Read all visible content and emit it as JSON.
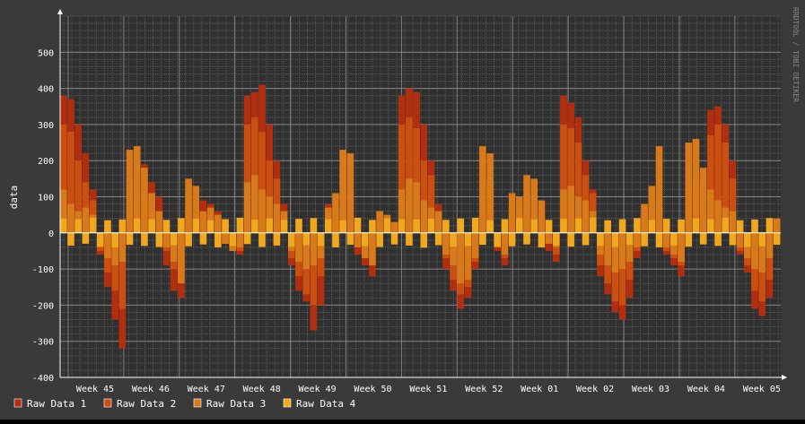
{
  "chart_data": {
    "type": "bar",
    "title": "",
    "ylabel": "data",
    "xlabel": "",
    "ylim": [
      -400,
      600
    ],
    "yticks": [
      -400,
      -300,
      -200,
      -100,
      0,
      100,
      200,
      300,
      400,
      500
    ],
    "x_tick_labels": [
      "Week 45",
      "Week 46",
      "Week 47",
      "Week 48",
      "Week 49",
      "Week 50",
      "Week 51",
      "Week 52",
      "Week 01",
      "Week 02",
      "Week 03",
      "Week 04",
      "Week 05"
    ],
    "grid": true,
    "legend_position": "bottom-left",
    "watermark": "RRDTOOL / TOBI OETIKER",
    "colors": {
      "background": "#3a3a3a",
      "canvas": "#303030",
      "major_grid": "#a0a0a0",
      "minor_grid": "#5a5a5a",
      "text": "#ffffff",
      "watermark": "#888888"
    },
    "series": [
      {
        "name": "Raw Data 1",
        "color": "#b32d0f",
        "values": [
          380,
          370,
          300,
          220,
          120,
          -60,
          -150,
          -240,
          -320,
          120,
          160,
          190,
          140,
          100,
          -90,
          -160,
          -180,
          40,
          60,
          90,
          80,
          60,
          -30,
          -50,
          -60,
          380,
          390,
          410,
          300,
          200,
          80,
          -90,
          -160,
          -190,
          -270,
          -200,
          80,
          60,
          40,
          100,
          -60,
          -90,
          -120,
          60,
          40,
          30,
          380,
          400,
          390,
          300,
          200,
          80,
          -100,
          -160,
          -210,
          -180,
          -100,
          90,
          60,
          -50,
          -90,
          80,
          60,
          100,
          120,
          80,
          -50,
          -80,
          380,
          360,
          320,
          200,
          120,
          -120,
          -170,
          -220,
          -240,
          -180,
          -70,
          60,
          80,
          110,
          -60,
          -90,
          -120,
          130,
          150,
          160,
          340,
          350,
          300,
          200,
          -60,
          -110,
          -210,
          -230,
          -180,
          40
        ]
      },
      {
        "name": "Raw Data 2",
        "color": "#cc4f10",
        "values": [
          300,
          280,
          200,
          140,
          90,
          -50,
          -110,
          -160,
          -210,
          150,
          200,
          180,
          90,
          60,
          -50,
          -100,
          -120,
          60,
          90,
          50,
          60,
          40,
          -30,
          -40,
          -50,
          300,
          320,
          280,
          200,
          150,
          60,
          -70,
          -120,
          -170,
          -200,
          -120,
          60,
          40,
          70,
          120,
          -30,
          -60,
          -80,
          50,
          40,
          20,
          300,
          320,
          290,
          200,
          160,
          60,
          -70,
          -130,
          -170,
          -150,
          -80,
          80,
          140,
          -40,
          -70,
          60,
          50,
          80,
          100,
          60,
          -30,
          -60,
          300,
          290,
          250,
          160,
          110,
          -90,
          -140,
          -190,
          -200,
          -130,
          -50,
          50,
          90,
          70,
          -50,
          -70,
          -90,
          110,
          150,
          130,
          270,
          300,
          250,
          150,
          -50,
          -90,
          -160,
          -190,
          -130,
          30
        ]
      },
      {
        "name": "Raw Data 3",
        "color": "#d97a1a",
        "values": [
          120,
          80,
          60,
          70,
          50,
          -40,
          -70,
          -90,
          -80,
          230,
          240,
          180,
          110,
          60,
          -40,
          -80,
          -140,
          150,
          130,
          60,
          70,
          50,
          -30,
          -50,
          -40,
          140,
          160,
          120,
          100,
          80,
          60,
          -50,
          -80,
          -100,
          -90,
          -70,
          70,
          110,
          230,
          220,
          -40,
          -70,
          -90,
          60,
          50,
          30,
          120,
          150,
          140,
          90,
          70,
          60,
          -60,
          -90,
          -140,
          -130,
          -70,
          240,
          220,
          -30,
          -60,
          110,
          100,
          160,
          150,
          90,
          -30,
          -40,
          120,
          130,
          100,
          90,
          60,
          -60,
          -90,
          -110,
          -100,
          -80,
          -40,
          80,
          130,
          240,
          -40,
          -60,
          -80,
          250,
          260,
          180,
          120,
          90,
          70,
          60,
          -40,
          -70,
          -100,
          -110,
          -70,
          40
        ]
      },
      {
        "name": "Raw Data 4",
        "color": "#f2a81d",
        "values": [
          40,
          -35,
          38,
          -30,
          42,
          -38,
          35,
          -40,
          37,
          -33,
          40,
          -36,
          38,
          -39,
          36,
          -34,
          41,
          -37,
          39,
          -32,
          35,
          -40,
          38,
          -36,
          42,
          -31,
          37,
          -39,
          40,
          -35,
          36,
          -38,
          39,
          -34,
          41,
          -36,
          38,
          -40,
          35,
          -33,
          42,
          -37,
          36,
          -39,
          40,
          -32,
          38,
          -35,
          37,
          -41,
          39,
          -34,
          36,
          -38,
          40,
          -36,
          42,
          -33,
          35,
          -39,
          38,
          -37,
          41,
          -32,
          37,
          -40,
          36,
          -35,
          39,
          -38,
          40,
          -34,
          42,
          -36,
          35,
          -39,
          38,
          -33,
          41,
          -37,
          36,
          -40,
          39,
          -35,
          37,
          -38,
          40,
          -32,
          38,
          -36,
          42,
          -34,
          35,
          -39,
          37,
          -37,
          41,
          -33
        ]
      }
    ]
  }
}
